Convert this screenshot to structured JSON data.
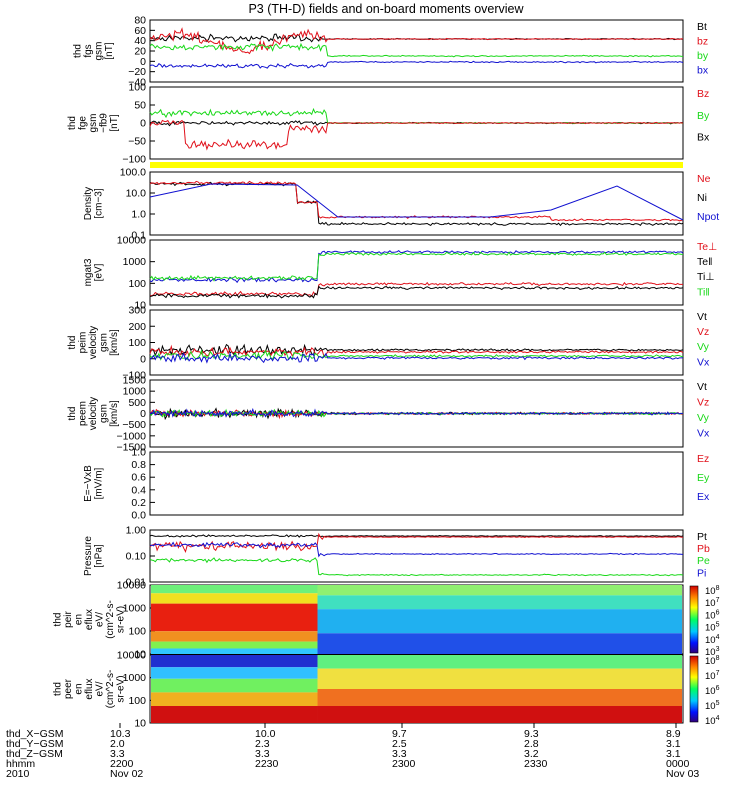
{
  "title": "P3 (TH-D) fields and on-board moments overview",
  "colors": {
    "black": "#000000",
    "red": "#e0101a",
    "green": "#18d818",
    "blue": "#1010d0",
    "yellow": "#ffff00"
  },
  "chart_data": [
    {
      "id": "fgs",
      "type": "line",
      "ylabel": [
        "thd",
        "fgs",
        "gsm",
        "[nT]"
      ],
      "yticks": [
        "80",
        "60",
        "40",
        "20",
        "0",
        "−20",
        "−40"
      ],
      "legend": [
        {
          "name": "Bt",
          "color": "black"
        },
        {
          "name": "bz",
          "color": "red"
        },
        {
          "name": "by",
          "color": "green"
        },
        {
          "name": "bx",
          "color": "blue"
        }
      ]
    },
    {
      "id": "fge",
      "type": "line",
      "ylabel": [
        "thd",
        "fge",
        "gsm",
        "−fb9",
        "[nT]"
      ],
      "yticks": [
        "100",
        "50",
        "0",
        "−50",
        "−100"
      ],
      "legend": [
        {
          "name": "Bz",
          "color": "red"
        },
        {
          "name": "By",
          "color": "green"
        },
        {
          "name": "Bx",
          "color": "black"
        }
      ]
    },
    {
      "id": "density",
      "type": "line",
      "log": true,
      "ylabel": [
        "Density",
        "[cm−3]"
      ],
      "yticks": [
        "100.0",
        "10.0",
        "1.0",
        "0.1"
      ],
      "legend": [
        {
          "name": "Ne",
          "color": "red"
        },
        {
          "name": "Ni",
          "color": "black"
        },
        {
          "name": "Npot",
          "color": "blue"
        }
      ]
    },
    {
      "id": "temp",
      "type": "line",
      "log": true,
      "ylabel": [
        "mgat3",
        "[eV]"
      ],
      "yticks": [
        "10000",
        "1000",
        "100",
        "10"
      ],
      "legend": [
        {
          "name": "Te⊥",
          "color": "red"
        },
        {
          "name": "Te‖",
          "color": "black"
        },
        {
          "name": "Ti⊥",
          "color": "black"
        },
        {
          "name": "Ti‖",
          "color": "green"
        }
      ]
    },
    {
      "id": "peim",
      "type": "line",
      "ylabel": [
        "thd",
        "peim",
        "velocity",
        "gsm",
        "[km/s]"
      ],
      "yticks": [
        "300",
        "200",
        "100",
        "0",
        "−100"
      ],
      "legend": [
        {
          "name": "Vt",
          "color": "black"
        },
        {
          "name": "Vz",
          "color": "red"
        },
        {
          "name": "Vy",
          "color": "green"
        },
        {
          "name": "Vx",
          "color": "blue"
        }
      ]
    },
    {
      "id": "peem",
      "type": "line",
      "ylabel": [
        "thd",
        "peem",
        "velocity",
        "gsm",
        "[km/s]"
      ],
      "yticks": [
        "1500",
        "1000",
        "500",
        "0",
        "−500",
        "−1000",
        "−1500"
      ],
      "legend": [
        {
          "name": "Vt",
          "color": "black"
        },
        {
          "name": "Vz",
          "color": "red"
        },
        {
          "name": "Vy",
          "color": "green"
        },
        {
          "name": "Vx",
          "color": "blue"
        }
      ]
    },
    {
      "id": "efield",
      "type": "line",
      "ylabel": [
        "E=−VxB",
        "[mV/m]"
      ],
      "yticks": [
        "1.0",
        "0.8",
        "0.6",
        "0.4",
        "0.2",
        "0.0"
      ],
      "legend": [
        {
          "name": "Ez",
          "color": "red"
        },
        {
          "name": "Ey",
          "color": "green"
        },
        {
          "name": "Ex",
          "color": "blue"
        }
      ]
    },
    {
      "id": "pressure",
      "type": "line",
      "log": true,
      "ylabel": [
        "Pressure",
        "[nPa]"
      ],
      "yticks": [
        "1.00",
        "0.10",
        "0.01"
      ],
      "legend": [
        {
          "name": "Pt",
          "color": "black"
        },
        {
          "name": "Pb",
          "color": "red"
        },
        {
          "name": "Pe",
          "color": "green"
        },
        {
          "name": "Pi",
          "color": "blue"
        }
      ]
    },
    {
      "id": "peir",
      "type": "heatmap",
      "ylabel": [
        "thd",
        "peir",
        "en",
        "eflux",
        "eV/",
        "(cm^2-s-",
        "sr-eV)"
      ],
      "yticks": [
        "10000",
        "1000",
        "100",
        "10"
      ],
      "colorbar": [
        "10^8",
        "10^7",
        "10^6",
        "10^5",
        "10^4",
        "10^3"
      ]
    },
    {
      "id": "peer",
      "type": "heatmap",
      "ylabel": [
        "thd",
        "peer",
        "en",
        "eflux",
        "eV/",
        "(cm^2-s-",
        "sr-eV)"
      ],
      "yticks": [
        "10000",
        "1000",
        "100",
        "10"
      ],
      "colorbar": [
        "10^8",
        "10^7",
        "10^6",
        "10^5",
        "10^4"
      ]
    }
  ],
  "xaxis": {
    "row_labels": [
      "thd_X−GSM",
      "thd_Y−GSM",
      "thd_Z−GSM",
      "hhmm",
      "2010"
    ],
    "columns": [
      [
        "10.3",
        "2.0",
        "3.3",
        "2200",
        "Nov 02"
      ],
      [
        "10.0",
        "2.3",
        "3.3",
        "2230",
        ""
      ],
      [
        "9.7",
        "2.5",
        "3.3",
        "2300",
        ""
      ],
      [
        "9.3",
        "2.8",
        "3.2",
        "2330",
        ""
      ],
      [
        "8.9",
        "3.1",
        "3.1",
        "0000",
        "Nov 03"
      ]
    ]
  }
}
